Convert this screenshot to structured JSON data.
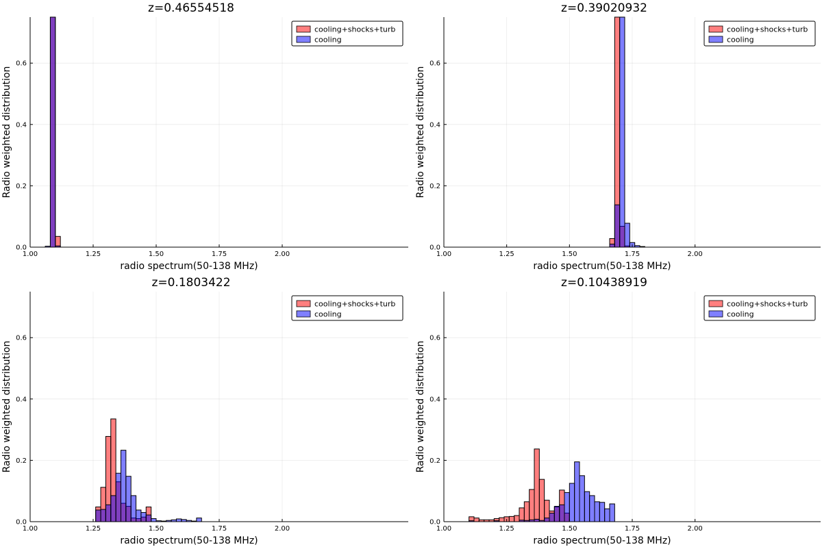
{
  "chart_data": [
    {
      "type": "bar",
      "title": "z=0.46554518",
      "xlabel": "radio spectrum(50-138 MHz)",
      "ylabel": "Radio weighted distribution",
      "xlim": [
        1.0,
        2.5
      ],
      "ylim": [
        0,
        0.75
      ],
      "xticks": [
        "1.00",
        "1.25",
        "1.50",
        "1.75",
        "2.00"
      ],
      "yticks": [
        "0.0",
        "0.2",
        "0.4",
        "0.6"
      ],
      "bin_width": 0.02,
      "legend": "top-right",
      "grid": true,
      "series": [
        {
          "name": "cooling+shocks+turb",
          "color": "#ff0000",
          "opacity": 0.5,
          "bins": [
            [
              1.08,
              0.75
            ],
            [
              1.1,
              0.035
            ]
          ]
        },
        {
          "name": "cooling",
          "color": "#0000ff",
          "opacity": 0.5,
          "bins": [
            [
              1.06,
              0.003
            ],
            [
              1.08,
              0.75
            ],
            [
              1.1,
              0.004
            ]
          ]
        }
      ]
    },
    {
      "type": "bar",
      "title": "z=0.39020932",
      "xlabel": "radio spectrum(50-138 MHz)",
      "ylabel": "Radio weighted distribution",
      "xlim": [
        1.0,
        2.5
      ],
      "ylim": [
        0,
        0.75
      ],
      "xticks": [
        "1.00",
        "1.25",
        "1.50",
        "1.75",
        "2.00"
      ],
      "yticks": [
        "0.0",
        "0.2",
        "0.4",
        "0.6"
      ],
      "bin_width": 0.02,
      "legend": "top-right",
      "grid": true,
      "series": [
        {
          "name": "cooling+shocks+turb",
          "color": "#ff0000",
          "opacity": 0.5,
          "bins": [
            [
              1.66,
              0.028
            ],
            [
              1.68,
              0.75
            ],
            [
              1.7,
              0.068
            ],
            [
              1.72,
              0.004
            ]
          ]
        },
        {
          "name": "cooling",
          "color": "#0000ff",
          "opacity": 0.5,
          "bins": [
            [
              1.66,
              0.01
            ],
            [
              1.68,
              0.138
            ],
            [
              1.7,
              0.75
            ],
            [
              1.72,
              0.078
            ],
            [
              1.74,
              0.015
            ],
            [
              1.76,
              0.005
            ],
            [
              1.78,
              0.002
            ]
          ]
        }
      ]
    },
    {
      "type": "bar",
      "title": "z=0.1803422",
      "xlabel": "radio spectrum(50-138 MHz)",
      "ylabel": "Radio weighted distribution",
      "xlim": [
        1.0,
        2.5
      ],
      "ylim": [
        0,
        0.75
      ],
      "xticks": [
        "1.00",
        "1.25",
        "1.50",
        "1.75",
        "2.00"
      ],
      "yticks": [
        "0.0",
        "0.2",
        "0.4",
        "0.6"
      ],
      "bin_width": 0.02,
      "legend": "top-right",
      "grid": true,
      "series": [
        {
          "name": "cooling+shocks+turb",
          "color": "#ff0000",
          "opacity": 0.5,
          "bins": [
            [
              1.26,
              0.048
            ],
            [
              1.28,
              0.112
            ],
            [
              1.3,
              0.278
            ],
            [
              1.32,
              0.335
            ],
            [
              1.34,
              0.13
            ],
            [
              1.36,
              0.06
            ],
            [
              1.38,
              0.05
            ],
            [
              1.4,
              0.012
            ],
            [
              1.42,
              0.01
            ],
            [
              1.44,
              0.015
            ],
            [
              1.46,
              0.048
            ]
          ]
        },
        {
          "name": "cooling",
          "color": "#0000ff",
          "opacity": 0.5,
          "bins": [
            [
              1.26,
              0.038
            ],
            [
              1.28,
              0.04
            ],
            [
              1.3,
              0.055
            ],
            [
              1.32,
              0.085
            ],
            [
              1.34,
              0.158
            ],
            [
              1.36,
              0.233
            ],
            [
              1.38,
              0.148
            ],
            [
              1.4,
              0.085
            ],
            [
              1.42,
              0.038
            ],
            [
              1.44,
              0.03
            ],
            [
              1.46,
              0.022
            ],
            [
              1.48,
              0.01
            ],
            [
              1.5,
              0.003
            ],
            [
              1.52,
              0.002
            ],
            [
              1.54,
              0.004
            ],
            [
              1.56,
              0.006
            ],
            [
              1.58,
              0.009
            ],
            [
              1.6,
              0.007
            ],
            [
              1.62,
              0.004
            ],
            [
              1.64,
              0.002
            ],
            [
              1.66,
              0.012
            ]
          ]
        }
      ]
    },
    {
      "type": "bar",
      "title": "z=0.10438919",
      "xlabel": "radio spectrum(50-138 MHz)",
      "ylabel": "Radio weighted distribution",
      "xlim": [
        1.0,
        2.5
      ],
      "ylim": [
        0,
        0.75
      ],
      "xticks": [
        "1.00",
        "1.25",
        "1.50",
        "1.75",
        "2.00"
      ],
      "yticks": [
        "0.0",
        "0.2",
        "0.4",
        "0.6"
      ],
      "bin_width": 0.02,
      "legend": "top-right",
      "grid": true,
      "series": [
        {
          "name": "cooling+shocks+turb",
          "color": "#ff0000",
          "opacity": 0.5,
          "bins": [
            [
              1.1,
              0.016
            ],
            [
              1.12,
              0.012
            ],
            [
              1.14,
              0.006
            ],
            [
              1.16,
              0.006
            ],
            [
              1.18,
              0.006
            ],
            [
              1.2,
              0.01
            ],
            [
              1.22,
              0.013
            ],
            [
              1.24,
              0.016
            ],
            [
              1.26,
              0.017
            ],
            [
              1.28,
              0.02
            ],
            [
              1.3,
              0.045
            ],
            [
              1.32,
              0.065
            ],
            [
              1.34,
              0.105
            ],
            [
              1.36,
              0.237
            ],
            [
              1.38,
              0.138
            ],
            [
              1.4,
              0.07
            ],
            [
              1.42,
              0.035
            ],
            [
              1.44,
              0.048
            ],
            [
              1.46,
              0.103
            ],
            [
              1.48,
              0.028
            ]
          ]
        },
        {
          "name": "cooling",
          "color": "#0000ff",
          "opacity": 0.5,
          "bins": [
            [
              1.1,
              0.003
            ],
            [
              1.2,
              0.003
            ],
            [
              1.3,
              0.005
            ],
            [
              1.32,
              0.004
            ],
            [
              1.34,
              0.006
            ],
            [
              1.36,
              0.008
            ],
            [
              1.38,
              0.004
            ],
            [
              1.4,
              0.012
            ],
            [
              1.42,
              0.028
            ],
            [
              1.44,
              0.05
            ],
            [
              1.46,
              0.055
            ],
            [
              1.48,
              0.095
            ],
            [
              1.5,
              0.125
            ],
            [
              1.52,
              0.195
            ],
            [
              1.54,
              0.15
            ],
            [
              1.56,
              0.098
            ],
            [
              1.58,
              0.085
            ],
            [
              1.6,
              0.065
            ],
            [
              1.62,
              0.063
            ],
            [
              1.64,
              0.042
            ],
            [
              1.66,
              0.058
            ]
          ]
        }
      ]
    }
  ]
}
